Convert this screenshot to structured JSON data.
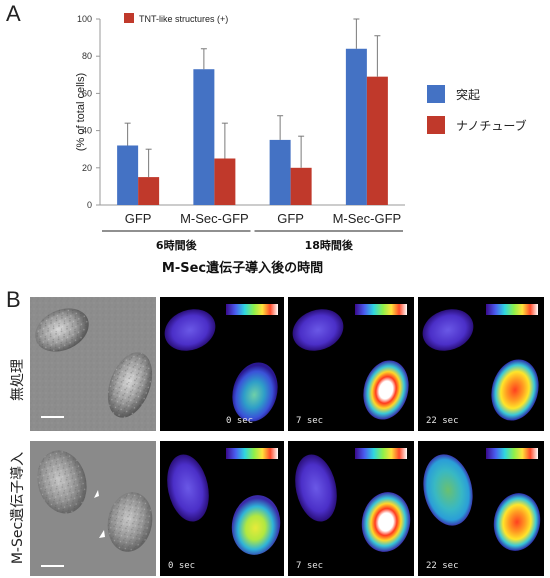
{
  "panel_a": {
    "label": "A"
  },
  "panel_b": {
    "label": "B"
  },
  "chart_data": {
    "type": "bar",
    "ylabel": "(% of total cells)",
    "ylim": [
      0,
      100
    ],
    "yticks": [
      0,
      20,
      40,
      60,
      80,
      100
    ],
    "categories": [
      "GFP",
      "M-Sec-GFP",
      "GFP",
      "M-Sec-GFP"
    ],
    "groups": [
      {
        "label": "6時間後",
        "categories": [
          0,
          1
        ]
      },
      {
        "label": "18時間後",
        "categories": [
          2,
          3
        ]
      }
    ],
    "xlabel": "M-Sec遺伝子導入後の時間",
    "series": [
      {
        "name": "突起",
        "color": "#4472c4",
        "values": [
          32,
          73,
          35,
          84
        ],
        "errors": [
          12,
          11,
          13,
          16
        ]
      },
      {
        "name": "ナノチューブ",
        "color": "#c0392b",
        "values": [
          15,
          25,
          20,
          69
        ],
        "errors": [
          15,
          19,
          17,
          22
        ]
      }
    ],
    "inset_legend": "TNT-like structures (+)",
    "legend_position": "right"
  },
  "micrographs": {
    "rows": [
      {
        "label": "無処理",
        "timestamps": [
          "0 sec",
          "7 sec",
          "22 sec"
        ]
      },
      {
        "label": "M-Sec遺伝子導入",
        "timestamps": [
          "0 sec",
          "7 sec",
          "22 sec"
        ]
      }
    ]
  }
}
